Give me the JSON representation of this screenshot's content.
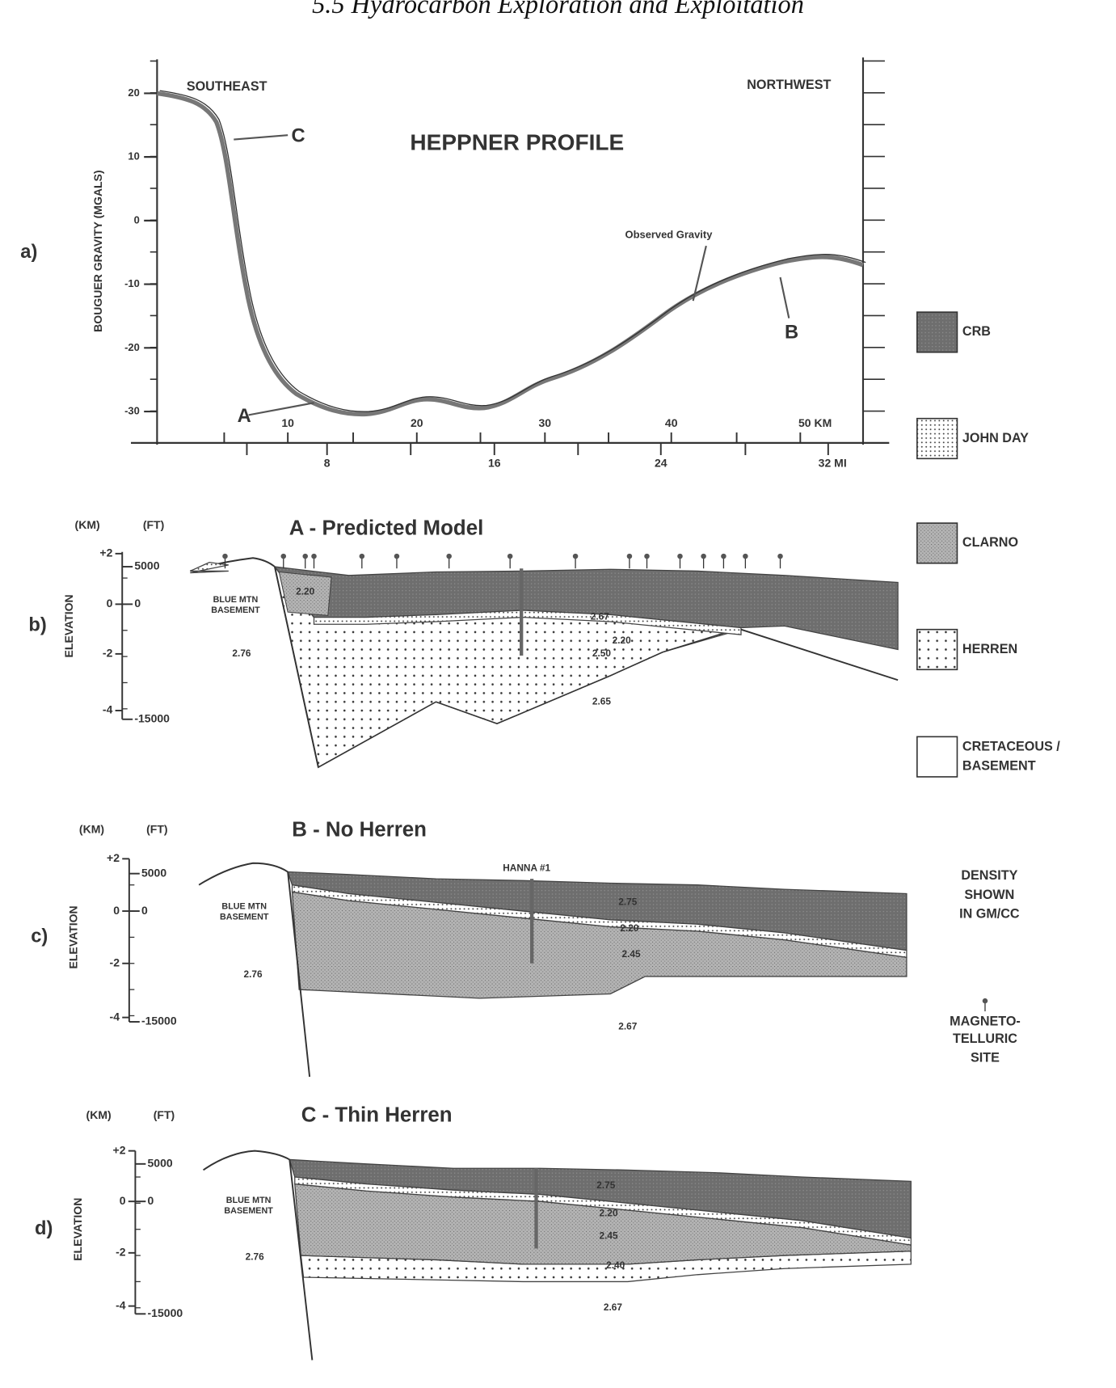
{
  "header": {
    "title": "5.5 Hydrocarbon Exploration and Exploitation"
  },
  "gravity_profile": {
    "panel_label": "a)",
    "title": "HEPPNER PROFILE",
    "y_axis_label": "BOUGUER GRAVITY (MGALS)",
    "left_label": "SOUTHEAST",
    "right_label": "NORTHWEST",
    "yticks": [
      "20",
      "10",
      "0",
      "-10",
      "-20",
      "-30"
    ],
    "km_ticks": [
      "10",
      "20",
      "30",
      "40",
      "50 KM"
    ],
    "mi_ticks": [
      "8",
      "16",
      "24",
      "32 MI"
    ],
    "annotations": [
      "C",
      "Observed Gravity",
      "B",
      "A"
    ]
  },
  "sections": [
    {
      "panel_label": "b)",
      "title": "A - Predicted Model",
      "km_unit": "(KM)",
      "ft_unit": "(FT)",
      "y_axis_label": "ELEVATION",
      "km_ticks": [
        "+2",
        "0",
        "-2",
        "-4"
      ],
      "ft_ticks": [
        "5000",
        "0",
        "-15000"
      ],
      "basement": [
        "BLUE MTN",
        "BASEMENT"
      ],
      "densities": [
        "2.76",
        "2.20",
        "2.67",
        "2.20",
        "2.50",
        "2.65"
      ]
    },
    {
      "panel_label": "c)",
      "title": "B - No Herren",
      "km_unit": "(KM)",
      "ft_unit": "(FT)",
      "y_axis_label": "ELEVATION",
      "km_ticks": [
        "+2",
        "0",
        "-2",
        "-4"
      ],
      "ft_ticks": [
        "5000",
        "0",
        "-15000"
      ],
      "basement": [
        "BLUE MTN",
        "BASEMENT"
      ],
      "densities": [
        "2.76",
        "2.75",
        "2.20",
        "2.45",
        "2.67"
      ],
      "well": "HANNA #1"
    },
    {
      "panel_label": "d)",
      "title": "C - Thin Herren",
      "km_unit": "(KM)",
      "ft_unit": "(FT)",
      "y_axis_label": "ELEVATION",
      "km_ticks": [
        "+2",
        "0",
        "-2",
        "-4"
      ],
      "ft_ticks": [
        "5000",
        "0",
        "-15000"
      ],
      "basement": [
        "BLUE MTN",
        "BASEMENT"
      ],
      "densities": [
        "2.76",
        "2.75",
        "2.20",
        "2.45",
        "2.40",
        "2.67"
      ]
    }
  ],
  "legend": {
    "items": [
      "CRB",
      "JOHN DAY",
      "CLARNO",
      "HERREN",
      "CRETACEOUS /",
      "BASEMENT"
    ],
    "density_note": [
      "DENSITY",
      "SHOWN",
      "IN GM/CC"
    ],
    "mt_site": [
      "MAGNETO-",
      "TELLURIC",
      "SITE"
    ]
  }
}
